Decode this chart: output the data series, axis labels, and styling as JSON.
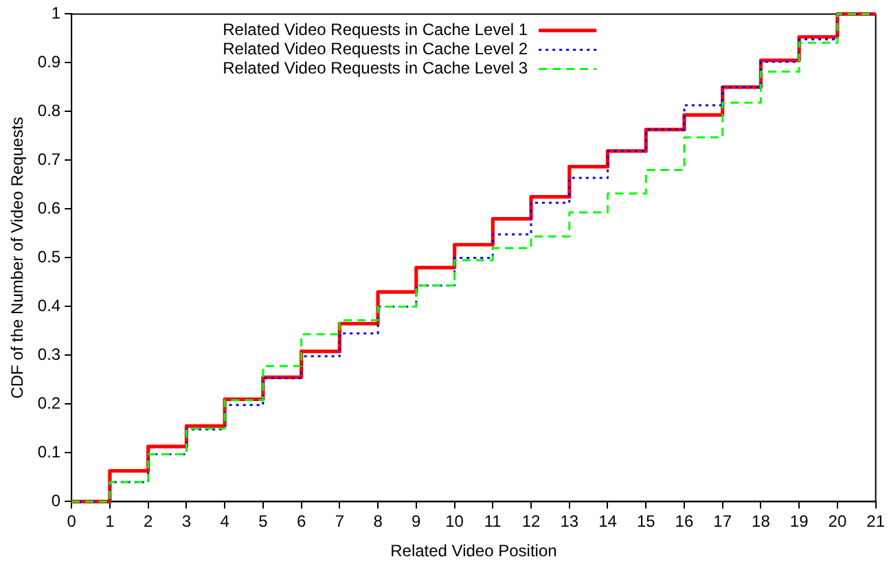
{
  "chart_data": {
    "type": "step",
    "xlabel": "Related Video Position",
    "ylabel": "CDF of the Number of Video Requests",
    "x": [
      0,
      1,
      2,
      3,
      4,
      5,
      6,
      7,
      8,
      9,
      10,
      11,
      12,
      13,
      14,
      15,
      16,
      17,
      18,
      19,
      20,
      21
    ],
    "series": [
      {
        "name": "Related Video Requests in Cache Level 1",
        "color": "#ff0000",
        "line_style": "solid",
        "values": [
          0,
          0.063,
          0.113,
          0.155,
          0.21,
          0.255,
          0.308,
          0.365,
          0.43,
          0.48,
          0.527,
          0.58,
          0.625,
          0.687,
          0.719,
          0.763,
          0.793,
          0.85,
          0.905,
          0.953,
          1,
          1
        ]
      },
      {
        "name": "Related Video Requests in Cache Level 2",
        "color": "#0000ff",
        "line_style": "dotted",
        "values": [
          0,
          0.04,
          0.097,
          0.148,
          0.198,
          0.253,
          0.298,
          0.345,
          0.4,
          0.443,
          0.5,
          0.548,
          0.613,
          0.664,
          0.719,
          0.763,
          0.813,
          0.85,
          0.902,
          0.948,
          1,
          1
        ]
      },
      {
        "name": "Related Video Requests in Cache Level 3",
        "color": "#00ff00",
        "line_style": "dashed",
        "values": [
          0,
          0.04,
          0.097,
          0.15,
          0.208,
          0.278,
          0.343,
          0.372,
          0.4,
          0.443,
          0.495,
          0.52,
          0.544,
          0.593,
          0.632,
          0.68,
          0.747,
          0.818,
          0.882,
          0.941,
          1,
          1
        ]
      }
    ],
    "xlim": [
      0,
      21
    ],
    "xticks": [
      0,
      1,
      2,
      3,
      4,
      5,
      6,
      7,
      8,
      9,
      10,
      11,
      12,
      13,
      14,
      15,
      16,
      17,
      18,
      19,
      20,
      21
    ],
    "ylim": [
      0,
      1
    ],
    "yticks": [
      0,
      0.1,
      0.2,
      0.3,
      0.4,
      0.5,
      0.6,
      0.7,
      0.8,
      0.9,
      1
    ],
    "grid": false,
    "legend": "top",
    "marker": "none"
  }
}
